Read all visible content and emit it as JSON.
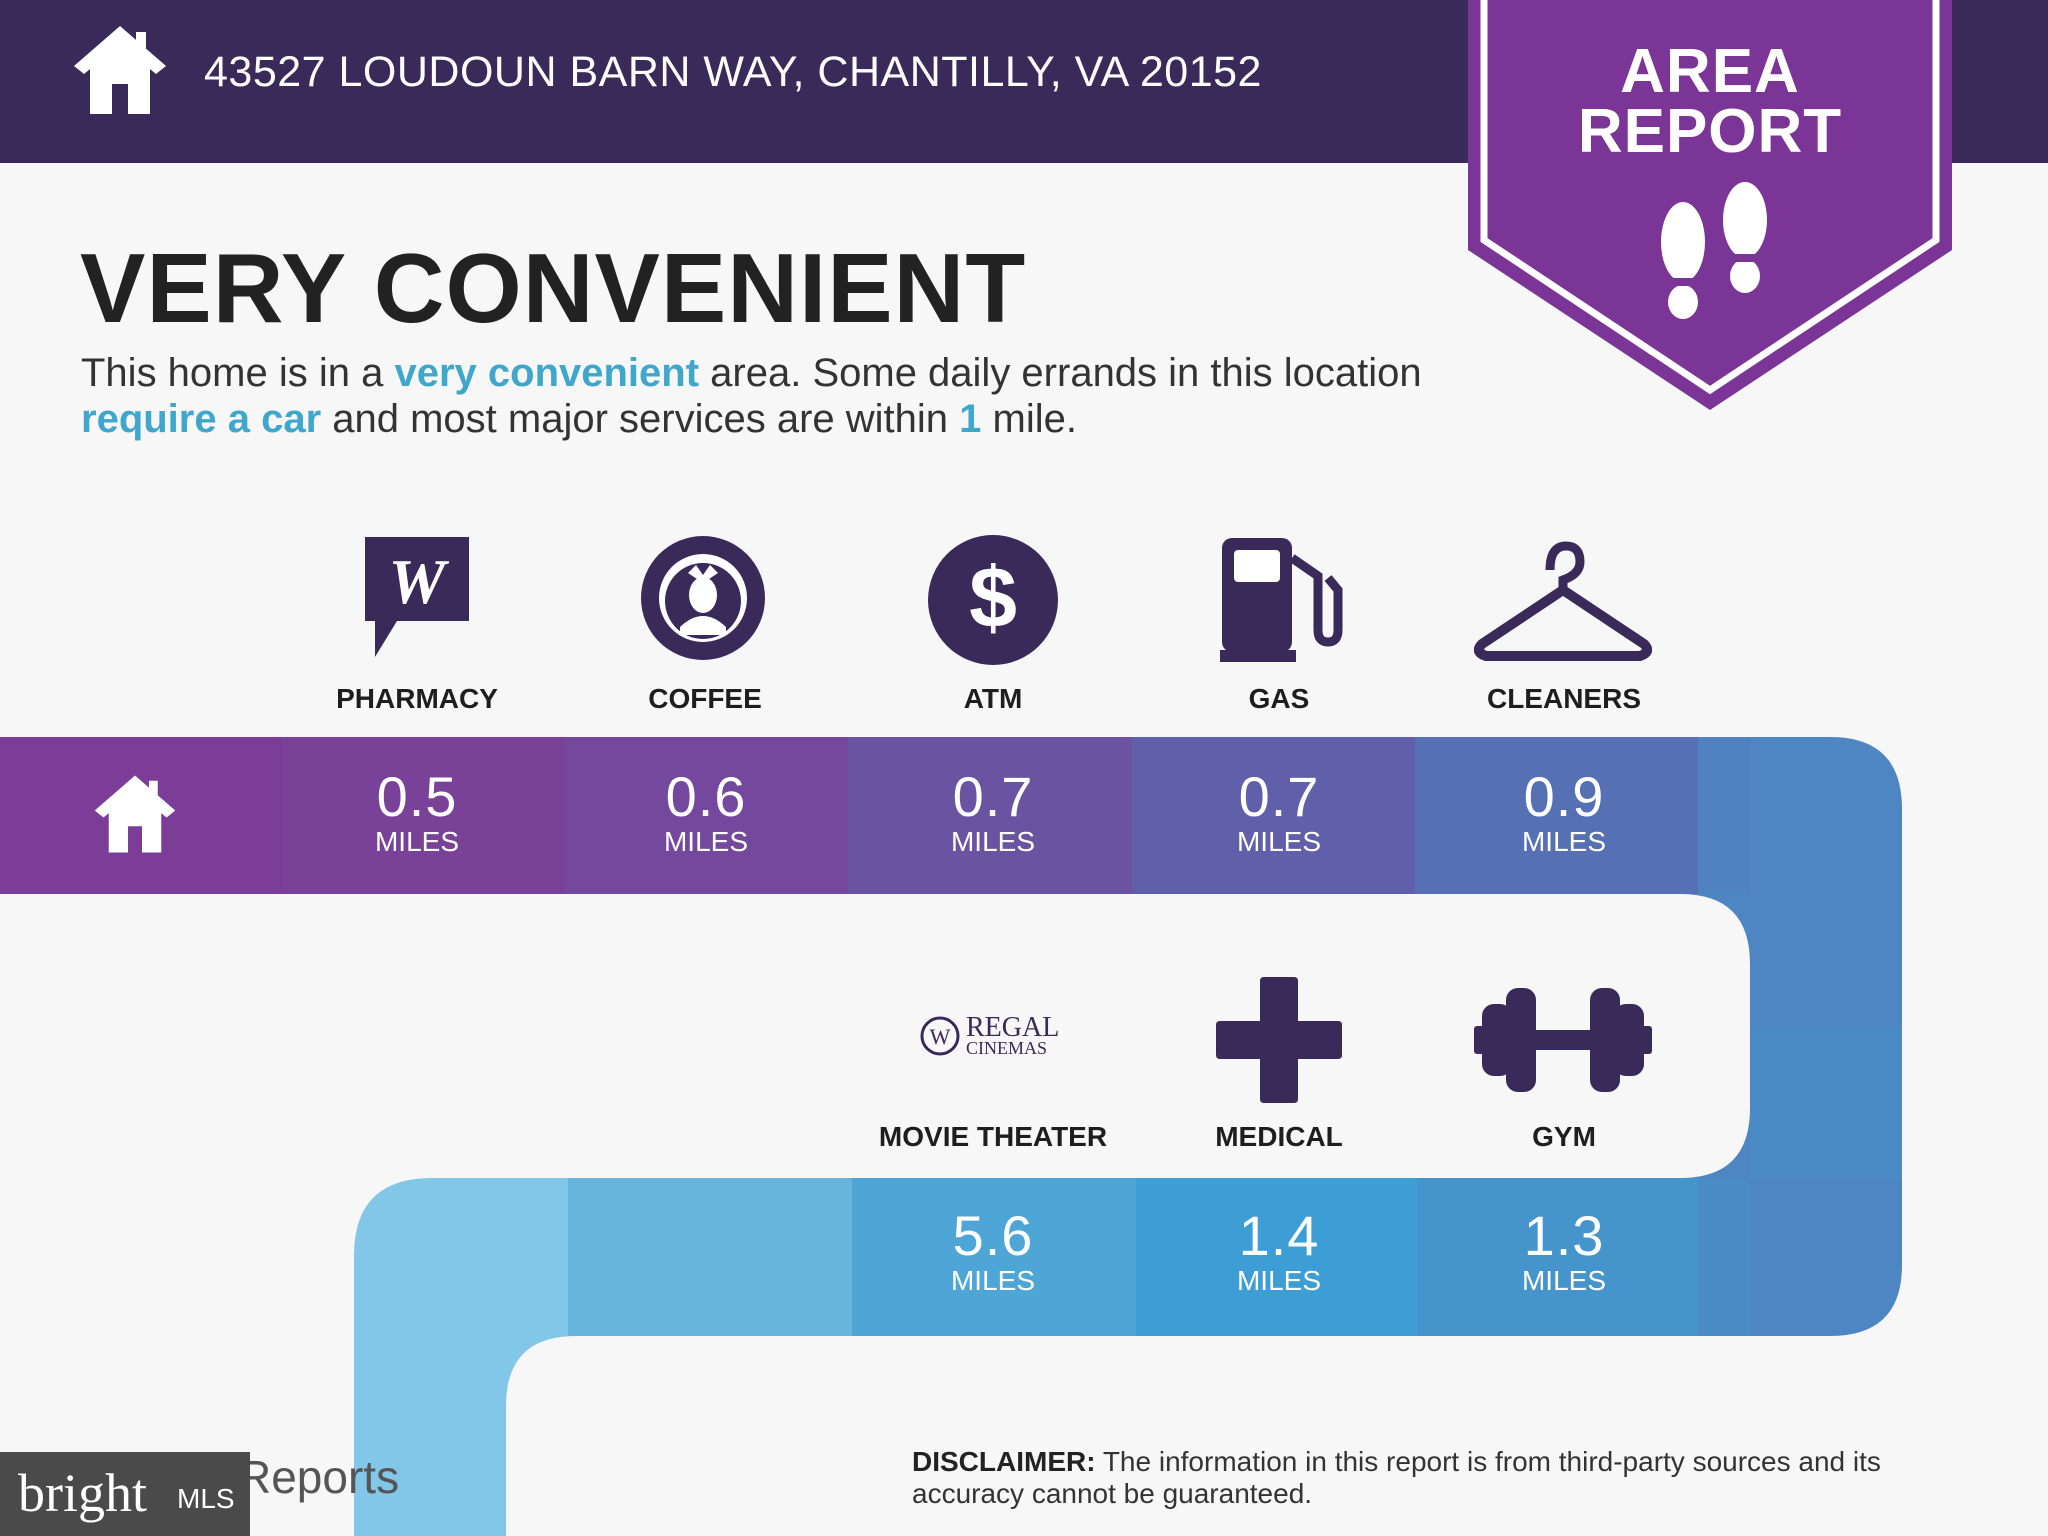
{
  "header": {
    "address": "43527 LOUDOUN BARN WAY, CHANTILLY, VA 20152",
    "home_icon": "house-icon"
  },
  "badge": {
    "line1": "AREA",
    "line2": "REPORT",
    "icon": "footprints-icon",
    "color": "#7b3596"
  },
  "summary": {
    "heading": "VERY CONVENIENT",
    "text1": "This home is in a ",
    "hl1": "very convenient",
    "text2": " area. Some daily errands in this location ",
    "hl2": "require a car",
    "text3": " and most major services are within ",
    "hl3": "1",
    "text4": " mile."
  },
  "row1": [
    {
      "label": "PHARMACY",
      "value": "0.5",
      "unit": "MILES",
      "icon": "walgreens-logo-icon"
    },
    {
      "label": "COFFEE",
      "value": "0.6",
      "unit": "MILES",
      "icon": "starbucks-logo-icon"
    },
    {
      "label": "ATM",
      "value": "0.7",
      "unit": "MILES",
      "icon": "dollar-icon"
    },
    {
      "label": "GAS",
      "value": "0.7",
      "unit": "MILES",
      "icon": "gas-pump-icon"
    },
    {
      "label": "CLEANERS",
      "value": "0.9",
      "unit": "MILES",
      "icon": "hanger-icon"
    }
  ],
  "row2": [
    {
      "label": "MOVIE THEATER",
      "value": "5.6",
      "unit": "MILES",
      "icon": "regal-cinemas-logo-icon"
    },
    {
      "label": "MEDICAL",
      "value": "1.4",
      "unit": "MILES",
      "icon": "medical-cross-icon"
    },
    {
      "label": "GYM",
      "value": "1.3",
      "unit": "MILES",
      "icon": "dumbbell-icon"
    }
  ],
  "regal": {
    "line1": "REGAL",
    "line2": "CINEMAS"
  },
  "footer": {
    "disclaimer_label": "DISCLAIMER:",
    "disclaimer_text": " The information in this report is from third-party sources and its accuracy cannot be guaranteed.",
    "brand_partial": "Reports",
    "watermark": "bright",
    "watermark_mls": "MLS"
  },
  "colors": {
    "header": "#3a2a5a",
    "highlight": "#3fa7cc",
    "road_purple": "#7b3d98",
    "road_blue": "#4a8bc5"
  }
}
